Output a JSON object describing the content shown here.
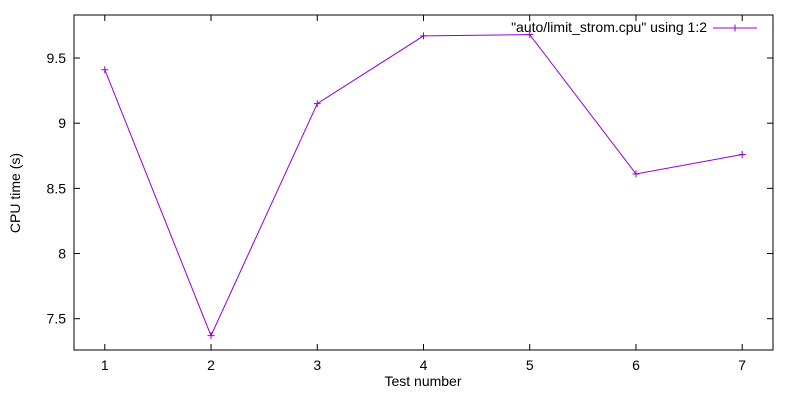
{
  "chart_data": {
    "type": "line",
    "title": "",
    "xlabel": "Test number",
    "ylabel": "CPU time (s)",
    "x": [
      1,
      2,
      3,
      4,
      5,
      6,
      7
    ],
    "series": [
      {
        "name": "\"auto/limit_strom.cpu\" using 1:2",
        "color": "#9400d3",
        "marker": "plus",
        "values": [
          9.41,
          7.37,
          9.15,
          9.67,
          9.68,
          8.61,
          8.76
        ]
      }
    ],
    "xticks": {
      "values": [
        1,
        2,
        3,
        4,
        5,
        6,
        7
      ],
      "labels": [
        "1",
        "2",
        "3",
        "4",
        "5",
        "6",
        "7"
      ]
    },
    "yticks": {
      "values": [
        7.5,
        8.0,
        8.5,
        9.0,
        9.5
      ],
      "labels": [
        "7.5",
        "8",
        "8.5",
        "9",
        "9.5"
      ]
    },
    "xlim": [
      0.71,
      7.29
    ],
    "ylim": [
      7.26,
      9.83
    ],
    "grid": false,
    "legend_position": "top-right",
    "axis_color": "#000000",
    "background": "#ffffff"
  }
}
